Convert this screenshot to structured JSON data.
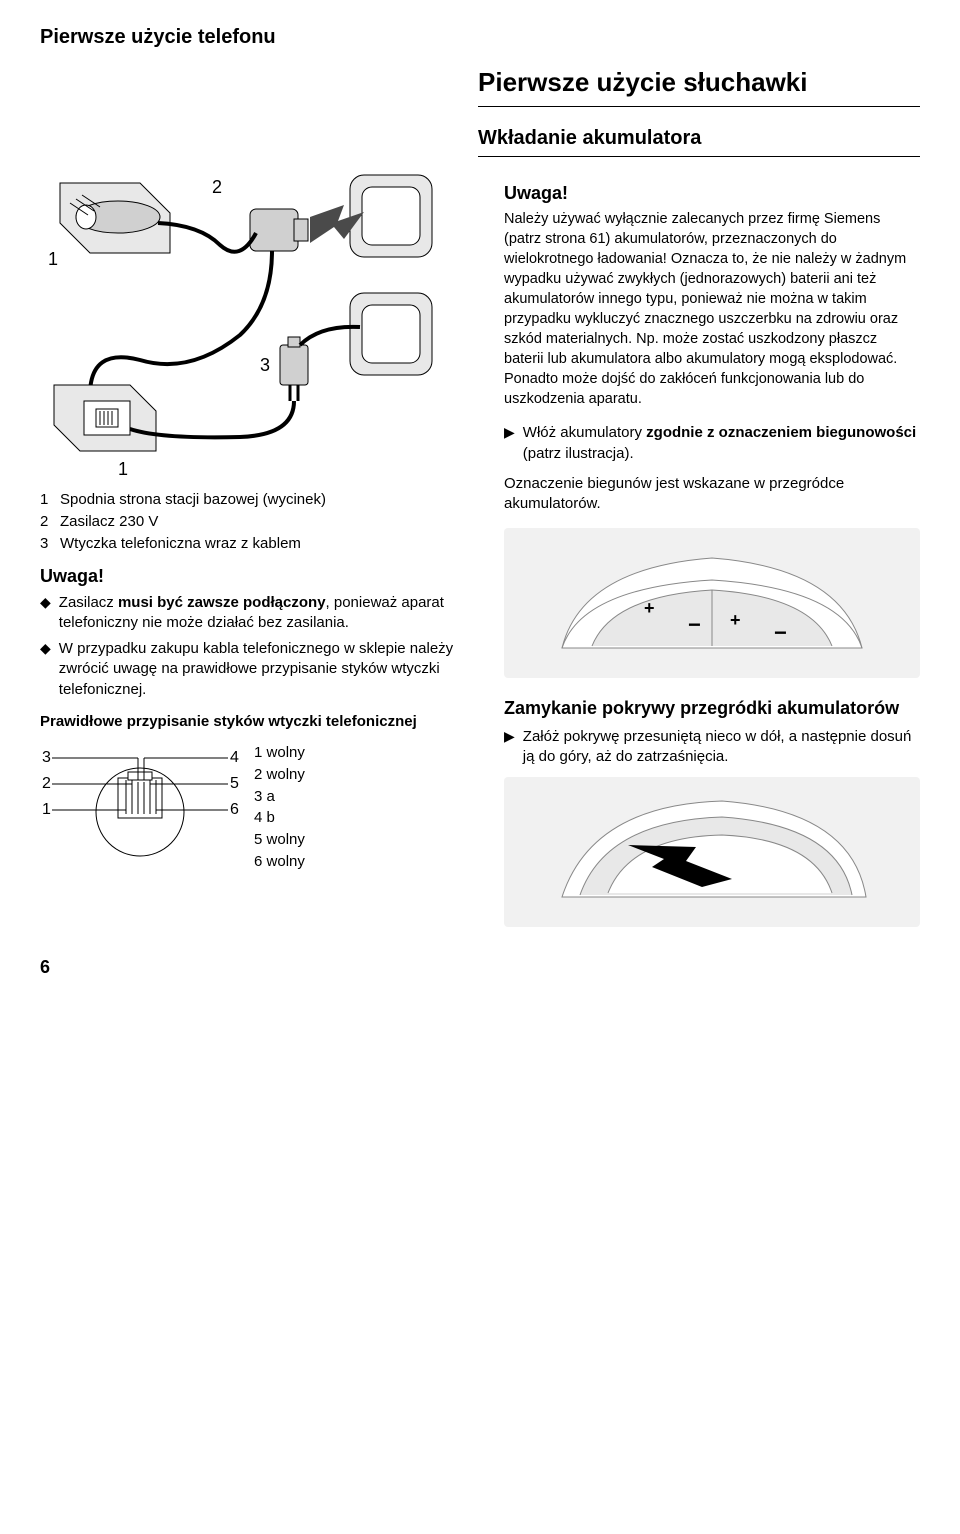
{
  "header": "Pierwsze użycie telefonu",
  "section_title": "Pierwsze użycie słuchawki",
  "sub_title": "Wkładanie akumulatora",
  "page_num": "6",
  "colors": {
    "text": "#000000",
    "bg": "#ffffff",
    "fig_grey": "#d0d0d0",
    "fig_light": "#e8e8e8",
    "fig_dark": "#4a4a4a",
    "line": "#000000"
  },
  "left": {
    "fig_labels": {
      "n1a": "1",
      "n1b": "1",
      "n2": "2",
      "n3": "3"
    },
    "legend": [
      {
        "n": "1",
        "t": "Spodnia strona stacji bazowej (wycinek)"
      },
      {
        "n": "2",
        "t": "Zasilacz 230 V"
      },
      {
        "n": "3",
        "t": "Wtyczka telefoniczna wraz z kablem"
      }
    ],
    "uwaga": "Uwaga!",
    "bullets": [
      "Zasilacz <b>musi być zawsze podłączony</b>, ponieważ aparat telefoniczny nie może działać bez zasilania.",
      "W przypadku zakupu kabla telefonicznego w sklepie należy zwrócić uwagę na prawidłowe przypisanie styków wtyczki telefonicznej."
    ],
    "pin_title": "Prawidłowe przypisanie styków wtyczki telefonicznej",
    "pin_left": [
      "3",
      "2",
      "1"
    ],
    "pin_right": [
      "4",
      "5",
      "6"
    ],
    "pin_legend": [
      {
        "n": "1",
        "t": "wolny"
      },
      {
        "n": "2",
        "t": "wolny"
      },
      {
        "n": "3",
        "t": "a"
      },
      {
        "n": "4",
        "t": "b"
      },
      {
        "n": "5",
        "t": "wolny"
      },
      {
        "n": "6",
        "t": "wolny"
      }
    ]
  },
  "right": {
    "uwaga": "Uwaga!",
    "notice": "Należy używać wyłącznie zalecanych przez firmę Siemens (patrz strona 61) akumulatorów, przeznaczonych do wielokrotnego ładowania! Oznacza to, że nie należy w żadnym wypadku używać zwykłych (jednorazowych) baterii ani też akumulatorów innego typu, ponieważ nie można w takim przypadku wykluczyć znacznego uszczerbku na zdrowiu oraz szkód materialnych. Np. może zostać uszkodzony płaszcz baterii lub akumulatora albo akumulatory mogą eksplodować. Ponadto może dojść do zakłóceń funkcjonowania lub do uszkodzenia aparatu.",
    "arrow_item_html": "Włóż akumulatory <b>zgodnie z oznaczeniem biegunowości</b> (patrz ilustracja).",
    "polarity_text": "Oznaczenie biegunów jest wskazane w przegródce akumulatorów.",
    "cover_title": "Zamykanie pokrywy przegródki akumulatorów",
    "cover_item": "Załóż pokrywę przesuniętą nieco w dół, a następnie dosuń ją do góry, aż do zatrzaśnięcia."
  }
}
